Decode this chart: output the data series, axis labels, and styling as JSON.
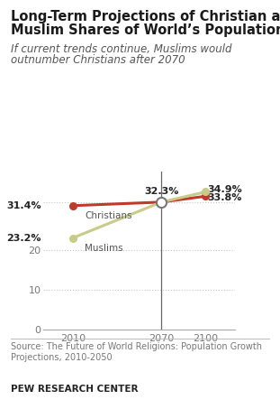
{
  "title_line1": "Long-Term Projections of Christian and",
  "title_line2": "Muslim Shares of World’s Population",
  "subtitle_line1": "If current trends continue, Muslims would",
  "subtitle_line2": "outnumber Christians after 2070",
  "christian_years": [
    2010,
    2070,
    2100
  ],
  "christian_values": [
    31.4,
    32.3,
    33.8
  ],
  "muslim_years": [
    2010,
    2070,
    2100
  ],
  "muslim_values": [
    23.2,
    32.3,
    34.9
  ],
  "christian_color": "#c0392b",
  "muslim_color": "#c8cc8a",
  "christian_label": "Christians",
  "muslim_label": "Muslims",
  "christian_2010_label": "31.4%",
  "muslim_2010_label": "23.2%",
  "crossover_label": "32.3%",
  "christian_2100_label": "33.8%",
  "muslim_2100_label": "34.9%",
  "yticks": [
    0,
    10,
    20
  ],
  "xticks": [
    2010,
    2070,
    2100
  ],
  "ylim": [
    0,
    40
  ],
  "xlim": [
    1990,
    2120
  ],
  "source_text": "Source: The Future of World Religions: Population Growth\nProjections, 2010-2050",
  "footer_text": "PEW RESEARCH CENTER",
  "bg_color": "#ffffff",
  "grid_color": "#c8c8c8",
  "title_fontsize": 10.5,
  "subtitle_fontsize": 8.5,
  "label_fontsize": 8.0,
  "tick_fontsize": 8.0,
  "source_fontsize": 7.0,
  "footer_fontsize": 7.5
}
